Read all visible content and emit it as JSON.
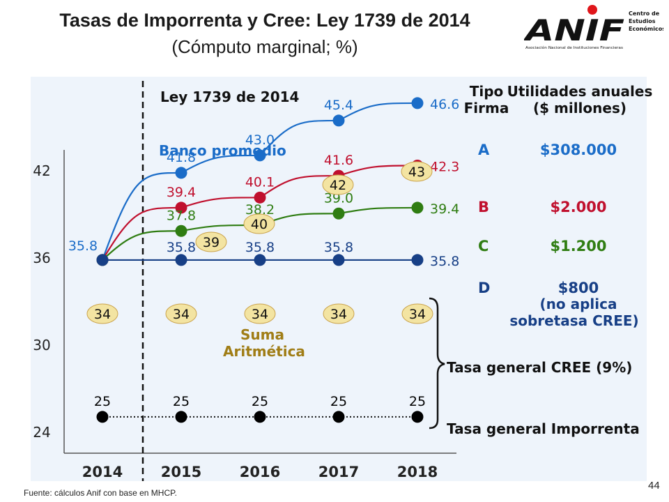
{
  "header": {
    "title": "Tasas de Imporrenta y Cree: Ley 1739 de 2014",
    "subtitle": "(Cómputo marginal; %)"
  },
  "logo": {
    "text": "ANIF",
    "tagline": "Asociación Nacional de Instituciones Financieras",
    "side1": "Centro de",
    "side2": "Estudios",
    "side3": "Económicos",
    "dot_color": "#e0161b"
  },
  "footer": {
    "source": "Fuente: cálculos Anif con base en MHCP.",
    "page": "44"
  },
  "table": {
    "header_col1": [
      "Tipo",
      "Firma"
    ],
    "header_col2": [
      "Utilidades anuales",
      "($ millones)"
    ],
    "rows": [
      {
        "type": "A",
        "amount": "$308.000",
        "color": "#1a6cc8"
      },
      {
        "type": "B",
        "amount": "$2.000",
        "color": "#c0102e"
      },
      {
        "type": "C",
        "amount": "$1.200",
        "color": "#2f7d12"
      },
      {
        "type": "D",
        "amount": "$800",
        "color": "#173f86"
      }
    ],
    "d_note": [
      "(no aplica",
      "sobretasa CREE)"
    ]
  },
  "chart_data": {
    "type": "line",
    "title": "Ley 1739 de 2014",
    "categories": [
      "2014",
      "2015",
      "2016",
      "2017",
      "2018"
    ],
    "ylim": [
      22.5,
      46.5
    ],
    "yticks": [
      24,
      30,
      36,
      42
    ],
    "reform_marker": "Ley 1739 de 2014",
    "series": [
      {
        "name": "Banco promedio",
        "color": "#1a6cc8",
        "values": [
          35.8,
          41.8,
          43.0,
          45.4,
          46.6
        ],
        "labels": [
          "35.8",
          "41.8",
          "43.0",
          "45.4",
          "46.6"
        ],
        "label_pos": [
          "above",
          "above",
          "above",
          "above",
          "right"
        ]
      },
      {
        "name": "B",
        "color": "#c0102e",
        "values": [
          35.8,
          39.4,
          40.1,
          41.6,
          42.3
        ],
        "labels": [
          "",
          "39.4",
          "40.1",
          "41.6",
          "42.3"
        ],
        "label_pos": [
          "",
          "above",
          "above",
          "above",
          "right"
        ]
      },
      {
        "name": "C",
        "color": "#2f7d12",
        "values": [
          35.8,
          37.8,
          38.2,
          39.0,
          39.4
        ],
        "labels": [
          "",
          "37.8",
          "38.2",
          "39.0",
          "39.4"
        ],
        "label_pos": [
          "",
          "above",
          "above",
          "above",
          "right"
        ]
      },
      {
        "name": "D",
        "color": "#173f86",
        "values": [
          35.8,
          35.8,
          35.8,
          35.8,
          35.8
        ],
        "labels": [
          "",
          "35.8",
          "35.8",
          "35.8",
          "35.8"
        ],
        "label_pos": [
          "",
          "above",
          "above",
          "above",
          "right"
        ]
      },
      {
        "name": "Tasa general Imporrenta",
        "color": "#000000",
        "values": [
          25,
          25,
          25,
          25,
          25
        ],
        "labels": [
          "25",
          "25",
          "25",
          "25",
          "25"
        ],
        "label_pos": [
          "above",
          "above",
          "above",
          "above",
          "above"
        ]
      }
    ],
    "sum_badges": [
      {
        "label": "34",
        "x": "2014"
      },
      {
        "label": "34",
        "x": "2015"
      },
      {
        "label": "34",
        "x": "2016"
      },
      {
        "label": "34",
        "x": "2017"
      },
      {
        "label": "34",
        "x": "2018"
      },
      {
        "label": "39",
        "x": "2015"
      },
      {
        "label": "40",
        "x": "2016"
      },
      {
        "label": "42",
        "x": "2017"
      },
      {
        "label": "43",
        "x": "2018"
      }
    ],
    "annotations": {
      "banco": "Banco promedio",
      "suma": [
        "Suma",
        "Aritmética"
      ],
      "cree": "Tasa general CREE (9%)",
      "imporrenta": "Tasa general Imporrenta"
    }
  }
}
